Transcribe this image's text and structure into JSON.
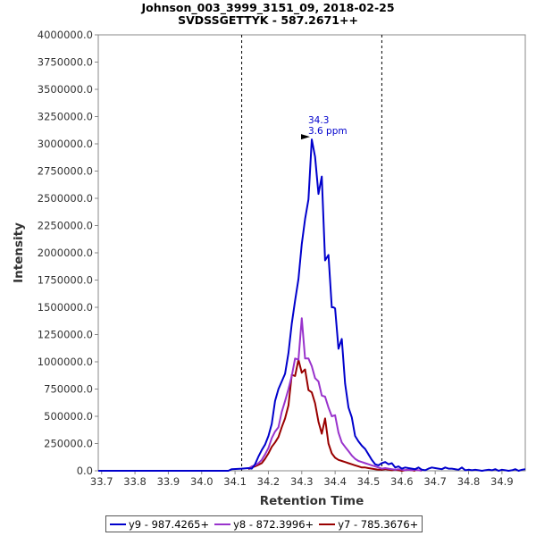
{
  "chart_data": {
    "type": "line",
    "title": "Johnson_003_3999_3151_09, 2018-02-25",
    "subtitle": "SVDSSGETTYK - 587.2671++",
    "xlabel": "Retention Time",
    "ylabel": "Intensity",
    "xlim": [
      33.69,
      34.97
    ],
    "ylim": [
      0,
      4000000
    ],
    "x_ticks": [
      "33.7",
      "33.8",
      "33.9",
      "34.0",
      "34.1",
      "34.2",
      "34.3",
      "34.4",
      "34.5",
      "34.6",
      "34.7",
      "34.8",
      "34.9"
    ],
    "y_ticks": [
      "0.0",
      "250000.0",
      "500000.0",
      "750000.0",
      "1000000.0",
      "1250000.0",
      "1500000.0",
      "1750000.0",
      "2000000.0",
      "2250000.0",
      "2500000.0",
      "2750000.0",
      "3000000.0",
      "3250000.0",
      "3500000.0",
      "3750000.0",
      "4000000.0"
    ],
    "grid": false,
    "legend_position": "bottom",
    "integration_bounds": [
      34.12,
      34.54
    ],
    "peak_annotation": {
      "x": 34.33,
      "y": 3040000,
      "line1": "34.3",
      "line2": "3.6 ppm",
      "color": "#0000cc"
    },
    "series": [
      {
        "name": "y9 - 987.4265+",
        "color": "#0000cc",
        "x": [
          33.69,
          34.08,
          34.09,
          34.12,
          34.14,
          34.15,
          34.16,
          34.17,
          34.18,
          34.19,
          34.2,
          34.21,
          34.22,
          34.23,
          34.24,
          34.25,
          34.26,
          34.27,
          34.28,
          34.29,
          34.3,
          34.31,
          34.32,
          34.33,
          34.34,
          34.35,
          34.36,
          34.37,
          34.38,
          34.39,
          34.395,
          34.4,
          34.41,
          34.42,
          34.43,
          34.44,
          34.45,
          34.46,
          34.47,
          34.48,
          34.49,
          34.5,
          34.51,
          34.52,
          34.53,
          34.54,
          34.55,
          34.56,
          34.57,
          34.58,
          34.59,
          34.6,
          34.61,
          34.62,
          34.63,
          34.64,
          34.65,
          34.66,
          34.67,
          34.68,
          34.69,
          34.7,
          34.71,
          34.72,
          34.73,
          34.74,
          34.75,
          34.76,
          34.77,
          34.78,
          34.79,
          34.8,
          34.81,
          34.82,
          34.83,
          34.84,
          34.85,
          34.86,
          34.87,
          34.88,
          34.89,
          34.9,
          34.91,
          34.92,
          34.93,
          34.94,
          34.95,
          34.96,
          34.97
        ],
        "values": [
          0,
          0,
          15000,
          20000,
          25000,
          20000,
          60000,
          130000,
          190000,
          240000,
          320000,
          430000,
          640000,
          750000,
          820000,
          890000,
          1080000,
          1350000,
          1560000,
          1760000,
          2080000,
          2310000,
          2490000,
          3040000,
          2880000,
          2540000,
          2700000,
          1930000,
          1980000,
          1500000,
          1500000,
          1490000,
          1120000,
          1210000,
          800000,
          580000,
          490000,
          320000,
          270000,
          230000,
          200000,
          150000,
          100000,
          60000,
          50000,
          70000,
          80000,
          60000,
          70000,
          30000,
          40000,
          20000,
          30000,
          25000,
          20000,
          15000,
          30000,
          10000,
          5000,
          20000,
          30000,
          25000,
          20000,
          15000,
          30000,
          20000,
          20000,
          15000,
          10000,
          30000,
          5000,
          10000,
          5000,
          10000,
          5000,
          0,
          5000,
          10000,
          5000,
          15000,
          0,
          10000,
          5000,
          0,
          5000,
          15000,
          0,
          10000,
          15000
        ]
      },
      {
        "name": "y8 - 872.3996+",
        "color": "#9933cc",
        "x": [
          34.14,
          34.15,
          34.16,
          34.17,
          34.18,
          34.19,
          34.2,
          34.21,
          34.22,
          34.23,
          34.24,
          34.25,
          34.26,
          34.27,
          34.28,
          34.29,
          34.3,
          34.31,
          34.32,
          34.33,
          34.34,
          34.35,
          34.36,
          34.37,
          34.38,
          34.39,
          34.4,
          34.41,
          34.42,
          34.43,
          34.44,
          34.45,
          34.46,
          34.47,
          34.48,
          34.49,
          34.5,
          34.51,
          34.52,
          34.53,
          34.54,
          34.55,
          34.56,
          34.57,
          34.58,
          34.59,
          34.6,
          34.61,
          34.62,
          34.63,
          34.64,
          34.65,
          34.66
        ],
        "values": [
          20000,
          40000,
          50000,
          70000,
          100000,
          150000,
          210000,
          300000,
          360000,
          400000,
          540000,
          640000,
          750000,
          870000,
          1030000,
          1020000,
          1400000,
          1030000,
          1030000,
          960000,
          850000,
          820000,
          690000,
          680000,
          580000,
          500000,
          510000,
          350000,
          260000,
          220000,
          180000,
          140000,
          110000,
          90000,
          80000,
          70000,
          60000,
          50000,
          40000,
          30000,
          20000,
          25000,
          20000,
          15000,
          10000,
          15000,
          10000,
          5000,
          10000,
          5000,
          10000,
          5000,
          0
        ]
      },
      {
        "name": "y7 - 785.3676+",
        "color": "#990000",
        "x": [
          34.14,
          34.15,
          34.16,
          34.17,
          34.18,
          34.19,
          34.2,
          34.21,
          34.22,
          34.23,
          34.24,
          34.25,
          34.26,
          34.27,
          34.28,
          34.29,
          34.3,
          34.31,
          34.32,
          34.33,
          34.34,
          34.35,
          34.36,
          34.37,
          34.38,
          34.39,
          34.4,
          34.41,
          34.42,
          34.43,
          34.44,
          34.45,
          34.46,
          34.47,
          34.48,
          34.49,
          34.5,
          34.51,
          34.52,
          34.53,
          34.54,
          34.55,
          34.56,
          34.57,
          34.58,
          34.59,
          34.6,
          34.61,
          34.62,
          34.63,
          34.64
        ],
        "values": [
          15000,
          30000,
          40000,
          55000,
          70000,
          110000,
          160000,
          220000,
          260000,
          310000,
          400000,
          480000,
          600000,
          880000,
          870000,
          1020000,
          900000,
          930000,
          740000,
          720000,
          620000,
          450000,
          340000,
          480000,
          250000,
          160000,
          120000,
          100000,
          90000,
          80000,
          70000,
          60000,
          50000,
          40000,
          30000,
          30000,
          25000,
          20000,
          15000,
          10000,
          10000,
          15000,
          10000,
          5000,
          10000,
          5000,
          0,
          5000,
          10000,
          5000,
          0
        ]
      }
    ]
  }
}
